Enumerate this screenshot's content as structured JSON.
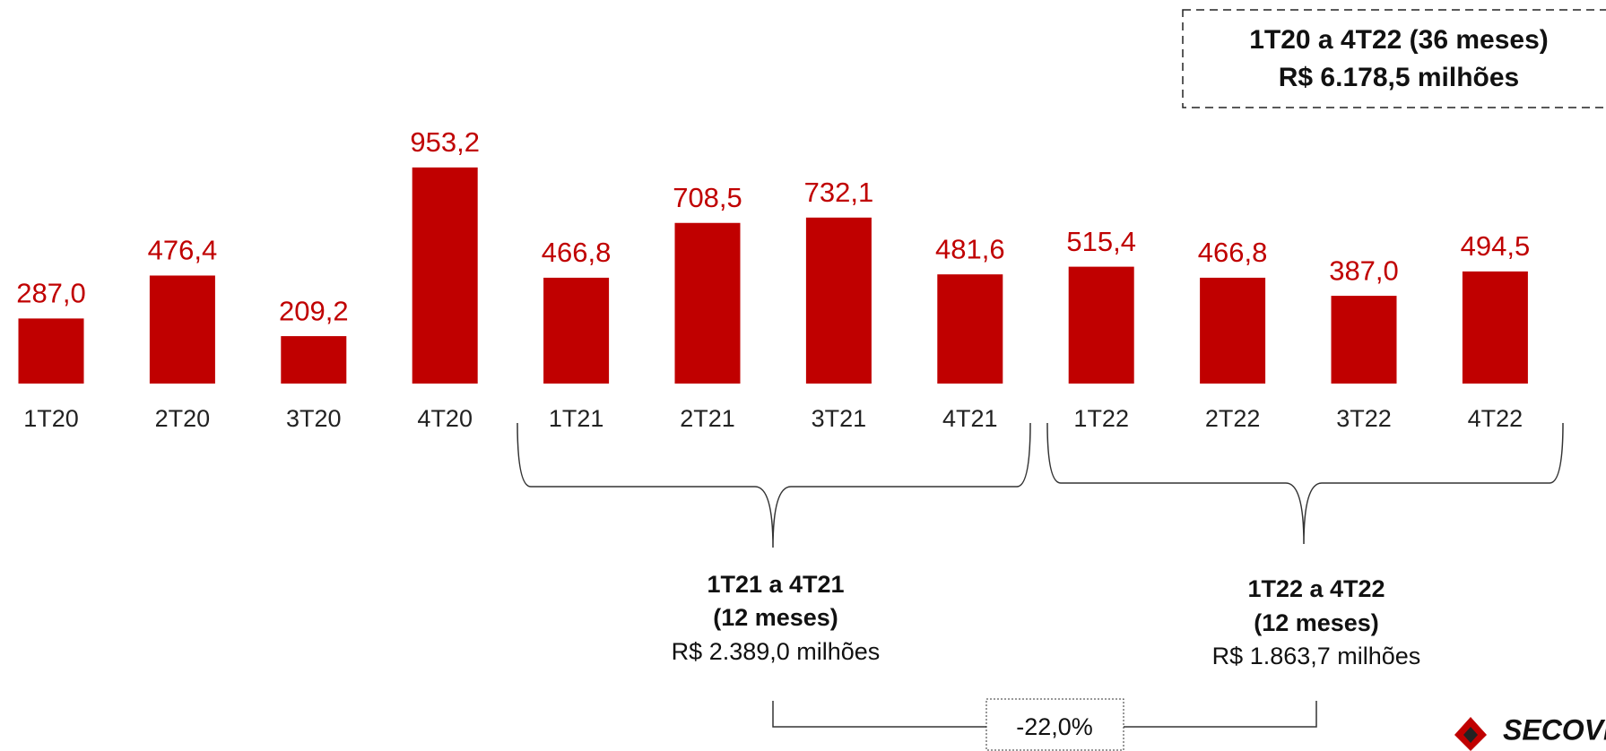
{
  "chart_data": {
    "type": "bar",
    "categories": [
      "1T20",
      "2T20",
      "3T20",
      "4T20",
      "1T21",
      "2T21",
      "3T21",
      "4T21",
      "1T22",
      "2T22",
      "3T22",
      "4T22"
    ],
    "values": [
      287.0,
      476.4,
      209.2,
      953.2,
      466.8,
      708.5,
      732.1,
      481.6,
      515.4,
      466.8,
      387.0,
      494.5
    ],
    "value_labels": [
      "287,0",
      "476,4",
      "209,2",
      "953,2",
      "466,8",
      "708,5",
      "732,1",
      "481,6",
      "515,4",
      "466,8",
      "387,0",
      "494,5"
    ],
    "color": "#c00000",
    "ylim": [
      0,
      1000
    ],
    "annotations": {
      "total": [
        "1T20 a 4T22 (36 meses)",
        "R$ 6.178,5 milhões"
      ],
      "group1": [
        "1T21 a 4T21",
        "(12 meses)",
        "R$ 2.389,0 milhões"
      ],
      "group2": [
        "1T22 a 4T22",
        "(12 meses)",
        "R$ 1.863,7 milhões"
      ],
      "change": "-22,0%"
    },
    "logo": "SECOVI"
  }
}
